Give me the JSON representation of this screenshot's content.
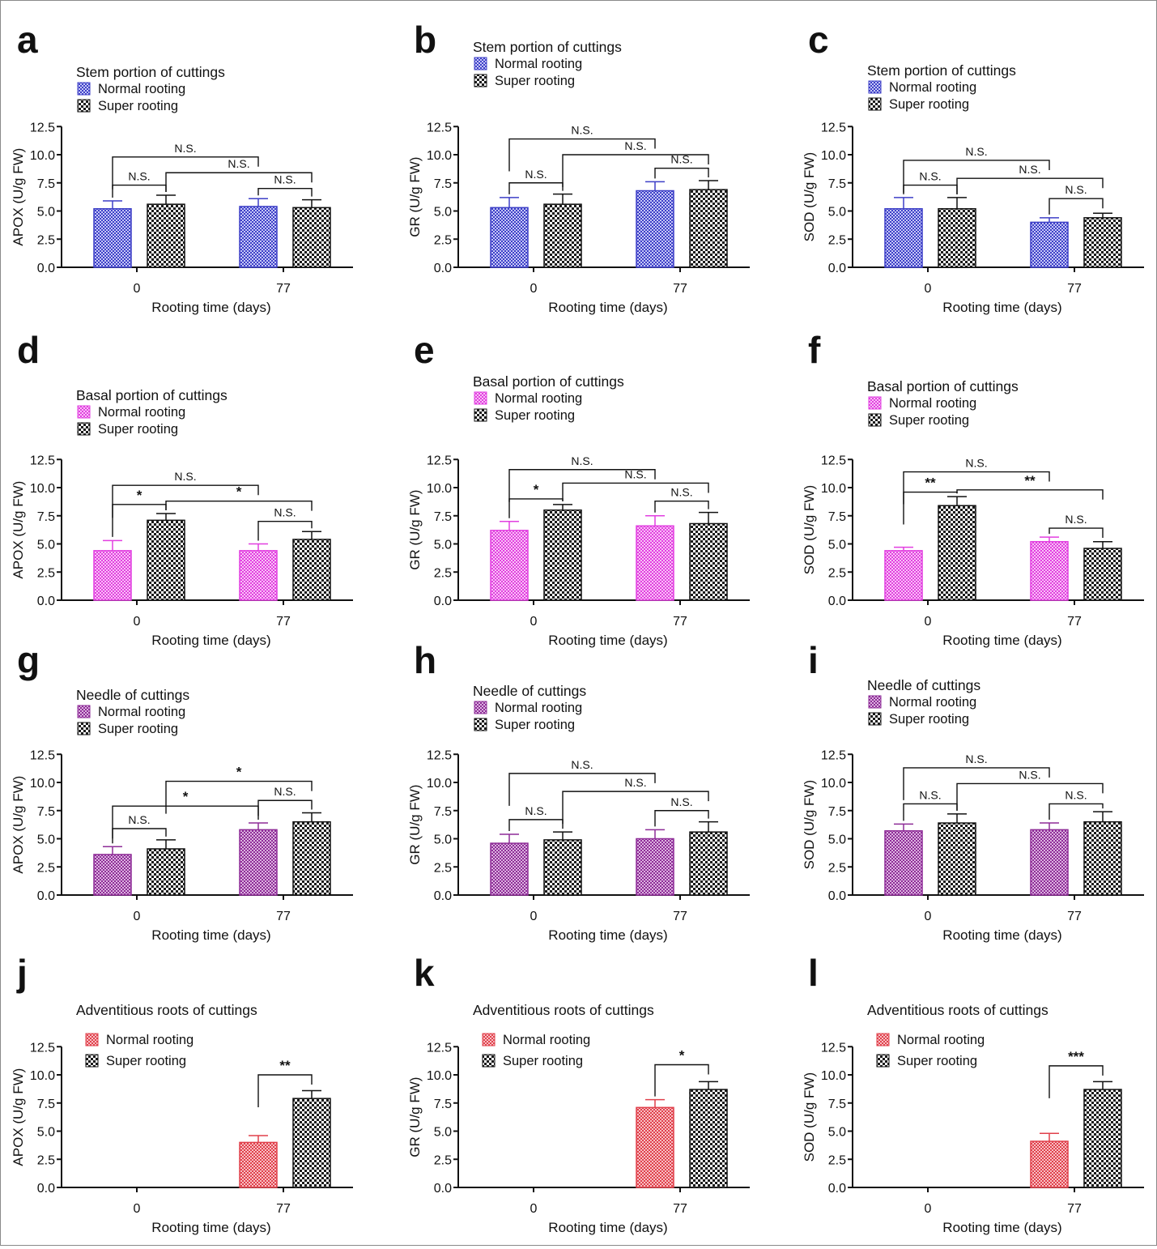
{
  "figure": {
    "caption": ""
  },
  "colors": {
    "stem": "#3d3fc7",
    "basal": "#e23fe0",
    "needle": "#8e2c97",
    "roots": "#e0404b",
    "super": "#1a1a1a"
  },
  "chart_data": [
    {
      "panel": "a",
      "type": "bar",
      "group": "stem",
      "title": "Stem portion of cuttings",
      "legend": [
        "Normal rooting",
        "Super rooting"
      ],
      "xlabel": "Rooting time (days)",
      "ylabel": "APOX (U/g FW)",
      "ylim": [
        0,
        12.5
      ],
      "yticks": [
        "0.0",
        "2.5",
        "5.0",
        "7.5",
        "10.0",
        "12.5"
      ],
      "categories": [
        "0",
        "77"
      ],
      "series": [
        {
          "name": "Normal rooting",
          "values": [
            5.2,
            5.4
          ],
          "errors": [
            0.7,
            0.7
          ]
        },
        {
          "name": "Super rooting",
          "values": [
            5.6,
            5.3
          ],
          "errors": [
            0.8,
            0.7
          ]
        }
      ],
      "comparisons": [
        {
          "from": 0,
          "to": 1,
          "level": 7.3,
          "label": "N.S."
        },
        {
          "from": 2,
          "to": 3,
          "level": 7.0,
          "label": "N.S."
        },
        {
          "from": 1,
          "to": 3,
          "level": 8.4,
          "label": "N.S."
        },
        {
          "from": 0,
          "to": 2,
          "level": 9.8,
          "label": "N.S."
        }
      ]
    },
    {
      "panel": "b",
      "type": "bar",
      "group": "stem",
      "title": "Stem portion of cuttings",
      "legend": [
        "Normal rooting",
        "Super rooting"
      ],
      "xlabel": "Rooting time (days)",
      "ylabel": "GR (U/g FW)",
      "ylim": [
        0,
        12.5
      ],
      "yticks": [
        "0.0",
        "2.5",
        "5.0",
        "7.5",
        "10.0",
        "12.5"
      ],
      "categories": [
        "0",
        "77"
      ],
      "series": [
        {
          "name": "Normal rooting",
          "values": [
            5.3,
            6.8
          ],
          "errors": [
            0.9,
            0.8
          ]
        },
        {
          "name": "Super rooting",
          "values": [
            5.6,
            6.9
          ],
          "errors": [
            0.9,
            0.8
          ]
        }
      ],
      "comparisons": [
        {
          "from": 0,
          "to": 1,
          "level": 7.5,
          "label": "N.S."
        },
        {
          "from": 2,
          "to": 3,
          "level": 8.8,
          "label": "N.S."
        },
        {
          "from": 1,
          "to": 3,
          "level": 10.0,
          "label": "N.S."
        },
        {
          "from": 0,
          "to": 2,
          "level": 11.4,
          "label": "N.S."
        }
      ]
    },
    {
      "panel": "c",
      "type": "bar",
      "group": "stem",
      "title": "Stem portion of cuttings",
      "legend": [
        "Normal rooting",
        "Super rooting"
      ],
      "xlabel": "Rooting time (days)",
      "ylabel": "SOD (U/g FW)",
      "ylim": [
        0,
        12.5
      ],
      "yticks": [
        "0.0",
        "2.5",
        "5.0",
        "7.5",
        "10.0",
        "12.5"
      ],
      "categories": [
        "0",
        "77"
      ],
      "series": [
        {
          "name": "Normal rooting",
          "values": [
            5.2,
            4.0
          ],
          "errors": [
            1.0,
            0.4
          ]
        },
        {
          "name": "Super rooting",
          "values": [
            5.2,
            4.4
          ],
          "errors": [
            1.0,
            0.4
          ]
        }
      ],
      "comparisons": [
        {
          "from": 0,
          "to": 1,
          "level": 7.3,
          "label": "N.S."
        },
        {
          "from": 2,
          "to": 3,
          "level": 6.1,
          "label": "N.S."
        },
        {
          "from": 1,
          "to": 3,
          "level": 7.9,
          "label": "N.S."
        },
        {
          "from": 0,
          "to": 2,
          "level": 9.5,
          "label": "N.S."
        }
      ]
    },
    {
      "panel": "d",
      "type": "bar",
      "group": "basal",
      "title": "Basal portion of cuttings",
      "legend": [
        "Normal rooting",
        "Super rooting"
      ],
      "xlabel": "Rooting time (days)",
      "ylabel": "APOX (U/g FW)",
      "ylim": [
        0,
        12.5
      ],
      "yticks": [
        "0.0",
        "2.5",
        "5.0",
        "7.5",
        "10.0",
        "12.5"
      ],
      "categories": [
        "0",
        "77"
      ],
      "series": [
        {
          "name": "Normal rooting",
          "values": [
            4.4,
            4.4
          ],
          "errors": [
            0.9,
            0.6
          ]
        },
        {
          "name": "Super rooting",
          "values": [
            7.1,
            5.4
          ],
          "errors": [
            0.6,
            0.7
          ]
        }
      ],
      "comparisons": [
        {
          "from": 0,
          "to": 1,
          "level": 8.5,
          "label": "*"
        },
        {
          "from": 2,
          "to": 3,
          "level": 7.0,
          "label": "N.S."
        },
        {
          "from": 1,
          "to": 3,
          "level": 8.8,
          "label": "*"
        },
        {
          "from": 0,
          "to": 2,
          "level": 10.2,
          "label": "N.S."
        }
      ]
    },
    {
      "panel": "e",
      "type": "bar",
      "group": "basal",
      "title": "Basal portion of cuttings",
      "legend": [
        "Normal rooting",
        "Super rooting"
      ],
      "xlabel": "Rooting time (days)",
      "ylabel": "GR (U/g FW)",
      "ylim": [
        0,
        12.5
      ],
      "yticks": [
        "0.0",
        "2.5",
        "5.0",
        "7.5",
        "10.0",
        "12.5"
      ],
      "categories": [
        "0",
        "77"
      ],
      "series": [
        {
          "name": "Normal rooting",
          "values": [
            6.2,
            6.6
          ],
          "errors": [
            0.8,
            0.9
          ]
        },
        {
          "name": "Super rooting",
          "values": [
            8.0,
            6.8
          ],
          "errors": [
            0.5,
            1.0
          ]
        }
      ],
      "comparisons": [
        {
          "from": 0,
          "to": 1,
          "level": 9.0,
          "label": "*"
        },
        {
          "from": 2,
          "to": 3,
          "level": 8.8,
          "label": "N.S."
        },
        {
          "from": 1,
          "to": 3,
          "level": 10.4,
          "label": "N.S."
        },
        {
          "from": 0,
          "to": 2,
          "level": 11.6,
          "label": "N.S."
        }
      ]
    },
    {
      "panel": "f",
      "type": "bar",
      "group": "basal",
      "title": "Basal portion of cuttings",
      "legend": [
        "Normal rooting",
        "Super rooting"
      ],
      "xlabel": "Rooting time (days)",
      "ylabel": "SOD (U/g FW)",
      "ylim": [
        0,
        12.5
      ],
      "yticks": [
        "0.0",
        "2.5",
        "5.0",
        "7.5",
        "10.0",
        "12.5"
      ],
      "categories": [
        "0",
        "77"
      ],
      "series": [
        {
          "name": "Normal rooting",
          "values": [
            4.4,
            5.2
          ],
          "errors": [
            0.3,
            0.4
          ]
        },
        {
          "name": "Super rooting",
          "values": [
            8.4,
            4.6
          ],
          "errors": [
            0.8,
            0.6
          ]
        }
      ],
      "comparisons": [
        {
          "from": 0,
          "to": 1,
          "level": 9.6,
          "label": "**"
        },
        {
          "from": 2,
          "to": 3,
          "level": 6.4,
          "label": "N.S."
        },
        {
          "from": 1,
          "to": 3,
          "level": 9.8,
          "label": "**"
        },
        {
          "from": 0,
          "to": 2,
          "level": 11.4,
          "label": "N.S."
        }
      ]
    },
    {
      "panel": "g",
      "type": "bar",
      "group": "needle",
      "title": "Needle of cuttings",
      "legend": [
        "Normal rooting",
        "Super rooting"
      ],
      "xlabel": "Rooting time (days)",
      "ylabel": "APOX (U/g FW)",
      "ylim": [
        0,
        12.5
      ],
      "yticks": [
        "0.0",
        "2.5",
        "5.0",
        "7.5",
        "10.0",
        "12.5"
      ],
      "categories": [
        "0",
        "77"
      ],
      "series": [
        {
          "name": "Normal rooting",
          "values": [
            3.6,
            5.8
          ],
          "errors": [
            0.7,
            0.6
          ]
        },
        {
          "name": "Super rooting",
          "values": [
            4.1,
            6.5
          ],
          "errors": [
            0.8,
            0.8
          ]
        }
      ],
      "comparisons": [
        {
          "from": 0,
          "to": 1,
          "level": 5.9,
          "label": "N.S."
        },
        {
          "from": 2,
          "to": 3,
          "level": 8.4,
          "label": "N.S."
        },
        {
          "from": 0,
          "to": 2,
          "level": 7.9,
          "label": "*"
        },
        {
          "from": 1,
          "to": 3,
          "level": 10.1,
          "label": "*"
        }
      ]
    },
    {
      "panel": "h",
      "type": "bar",
      "group": "needle",
      "title": "Needle of cuttings",
      "legend": [
        "Normal rooting",
        "Super rooting"
      ],
      "xlabel": "Rooting time (days)",
      "ylabel": "GR (U/g FW)",
      "ylim": [
        0,
        12.5
      ],
      "yticks": [
        "0.0",
        "2.5",
        "5.0",
        "7.5",
        "10.0",
        "12.5"
      ],
      "categories": [
        "0",
        "77"
      ],
      "series": [
        {
          "name": "Normal rooting",
          "values": [
            4.6,
            5.0
          ],
          "errors": [
            0.8,
            0.8
          ]
        },
        {
          "name": "Super rooting",
          "values": [
            4.9,
            5.6
          ],
          "errors": [
            0.7,
            0.9
          ]
        }
      ],
      "comparisons": [
        {
          "from": 0,
          "to": 1,
          "level": 6.7,
          "label": "N.S."
        },
        {
          "from": 2,
          "to": 3,
          "level": 7.5,
          "label": "N.S."
        },
        {
          "from": 1,
          "to": 3,
          "level": 9.2,
          "label": "N.S."
        },
        {
          "from": 0,
          "to": 2,
          "level": 10.8,
          "label": "N.S."
        }
      ]
    },
    {
      "panel": "i",
      "type": "bar",
      "group": "needle",
      "title": "Needle of cuttings",
      "legend": [
        "Normal rooting",
        "Super rooting"
      ],
      "xlabel": "Rooting time (days)",
      "ylabel": "SOD (U/g FW)",
      "ylim": [
        0,
        12.5
      ],
      "yticks": [
        "0.0",
        "2.5",
        "5.0",
        "7.5",
        "10.0",
        "12.5"
      ],
      "categories": [
        "0",
        "77"
      ],
      "series": [
        {
          "name": "Normal rooting",
          "values": [
            5.7,
            5.8
          ],
          "errors": [
            0.6,
            0.6
          ]
        },
        {
          "name": "Super rooting",
          "values": [
            6.4,
            6.5
          ],
          "errors": [
            0.8,
            0.9
          ]
        }
      ],
      "comparisons": [
        {
          "from": 0,
          "to": 1,
          "level": 8.1,
          "label": "N.S."
        },
        {
          "from": 2,
          "to": 3,
          "level": 8.1,
          "label": "N.S."
        },
        {
          "from": 1,
          "to": 3,
          "level": 9.9,
          "label": "N.S."
        },
        {
          "from": 0,
          "to": 2,
          "level": 11.3,
          "label": "N.S."
        }
      ]
    },
    {
      "panel": "j",
      "type": "bar",
      "group": "roots",
      "title": "Adventitious roots of cuttings",
      "legend": [
        "Normal rooting",
        "Super rooting"
      ],
      "xlabel": "Rooting time (days)",
      "ylabel": "APOX (U/g FW)",
      "ylim": [
        0,
        12.5
      ],
      "yticks": [
        "0.0",
        "2.5",
        "5.0",
        "7.5",
        "10.0",
        "12.5"
      ],
      "categories": [
        "0",
        "77"
      ],
      "series": [
        {
          "name": "Normal rooting",
          "values": [
            null,
            4.0
          ],
          "errors": [
            null,
            0.6
          ]
        },
        {
          "name": "Super rooting",
          "values": [
            null,
            7.9
          ],
          "errors": [
            null,
            0.7
          ]
        }
      ],
      "comparisons": [
        {
          "from": 2,
          "to": 3,
          "level": 10.0,
          "label": "**"
        }
      ]
    },
    {
      "panel": "k",
      "type": "bar",
      "group": "roots",
      "title": "Adventitious roots of cuttings",
      "legend": [
        "Normal rooting",
        "Super rooting"
      ],
      "xlabel": "Rooting time (days)",
      "ylabel": "GR (U/g FW)",
      "ylim": [
        0,
        12.5
      ],
      "yticks": [
        "0.0",
        "2.5",
        "5.0",
        "7.5",
        "10.0",
        "12.5"
      ],
      "categories": [
        "0",
        "77"
      ],
      "series": [
        {
          "name": "Normal rooting",
          "values": [
            null,
            7.1
          ],
          "errors": [
            null,
            0.7
          ]
        },
        {
          "name": "Super rooting",
          "values": [
            null,
            8.7
          ],
          "errors": [
            null,
            0.7
          ]
        }
      ],
      "comparisons": [
        {
          "from": 2,
          "to": 3,
          "level": 10.9,
          "label": "*"
        }
      ]
    },
    {
      "panel": "l",
      "type": "bar",
      "group": "roots",
      "title": "Adventitious roots of cuttings",
      "legend": [
        "Normal rooting",
        "Super rooting"
      ],
      "xlabel": "Rooting time (days)",
      "ylabel": "SOD (U/g FW)",
      "ylim": [
        0,
        12.5
      ],
      "yticks": [
        "0.0",
        "2.5",
        "5.0",
        "7.5",
        "10.0",
        "12.5"
      ],
      "categories": [
        "0",
        "77"
      ],
      "series": [
        {
          "name": "Normal rooting",
          "values": [
            null,
            4.1
          ],
          "errors": [
            null,
            0.7
          ]
        },
        {
          "name": "Super rooting",
          "values": [
            null,
            8.7
          ],
          "errors": [
            null,
            0.7
          ]
        }
      ],
      "comparisons": [
        {
          "from": 2,
          "to": 3,
          "level": 10.8,
          "label": "***"
        }
      ]
    }
  ]
}
